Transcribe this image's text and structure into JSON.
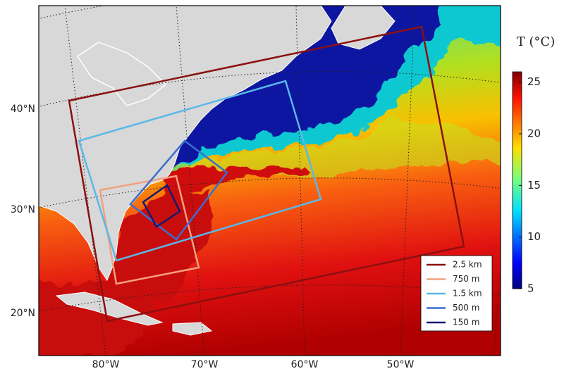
{
  "map": {
    "lat_labels": [
      "20°N",
      "30°N",
      "40°N"
    ],
    "lon_labels": [
      "80°W",
      "70°W",
      "60°W",
      "50°W"
    ],
    "colorbar": {
      "title": "T (°C)",
      "range": [
        5,
        26
      ],
      "ticks": [
        5,
        10,
        15,
        20,
        25
      ]
    },
    "domains": [
      {
        "name": "2.5 km",
        "color": "#8b1010"
      },
      {
        "name": "750 m",
        "color": "#f4a080"
      },
      {
        "name": "1.5 km",
        "color": "#5ab8e8"
      },
      {
        "name": "500 m",
        "color": "#3a6ed0"
      },
      {
        "name": "150 m",
        "color": "#141a70"
      }
    ]
  }
}
